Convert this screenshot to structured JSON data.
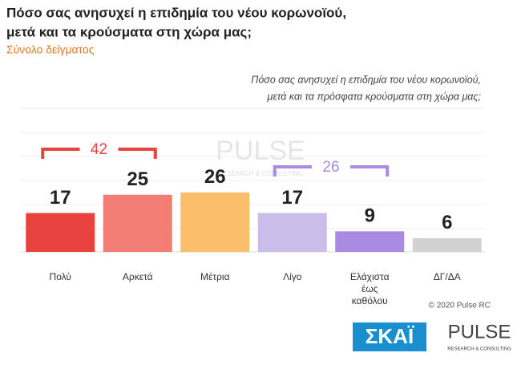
{
  "chart_data": {
    "type": "bar",
    "title": [
      "Πόσο σας ανησυχεί η επιδημία του νέου κορωνοϊού,",
      "μετά και τα κρούσματα στη χώρα μας;"
    ],
    "subtitle": "Σύνολο δείγματος",
    "question": [
      "Πόσο σας ανησυχεί η επιδημία του νέου κορωνοϊού,",
      "μετά και τα πρόσφατα κρούσματα στη χώρα μας;"
    ],
    "categories": [
      [
        "Πολύ"
      ],
      [
        "Αρκετά"
      ],
      [
        "Μέτρια"
      ],
      [
        "Λίγο"
      ],
      [
        "Ελάχιστα",
        "έως",
        "καθόλου"
      ],
      [
        "ΔΓ/ΔΑ"
      ]
    ],
    "values": [
      17,
      25,
      26,
      17,
      9,
      6
    ],
    "colors": [
      "#e8433e",
      "#f27d74",
      "#fbbf6c",
      "#cbbde9",
      "#a98be3",
      "#d2d2d2"
    ],
    "group_totals": [
      {
        "value": 42,
        "color": "#e8433e"
      },
      {
        "value": 26,
        "color": "#a98be3"
      }
    ],
    "watermark": "PULSE",
    "watermark_sub": "RESEARCH & CONSULTING",
    "copyright": "© 2020 Pulse RC",
    "logos": {
      "skai": "ΣΚΑΪ",
      "pulse": "PULSE",
      "pulse_sub": "RESEARCH & CONSULTING"
    }
  }
}
